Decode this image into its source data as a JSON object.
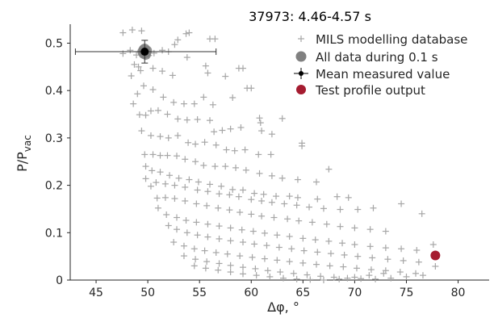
{
  "chart_data": {
    "type": "scatter",
    "title": "37973: 4.46-4.57 s",
    "xlabel": "Δφ, °",
    "ylabel": "P/P_vac",
    "ylabel_main": "P/P",
    "ylabel_sub": "vac",
    "xlim": [
      42.5,
      83
    ],
    "ylim": [
      0,
      0.54
    ],
    "x_ticks": [
      45,
      50,
      55,
      60,
      65,
      70,
      75,
      80
    ],
    "y_ticks": [
      0,
      0.1,
      0.2,
      0.3,
      0.4,
      0.5
    ],
    "x_tick_labels": [
      "45",
      "50",
      "55",
      "60",
      "65",
      "70",
      "75",
      "80"
    ],
    "y_tick_labels": [
      "0",
      "0.1",
      "0.2",
      "0.3",
      "0.4",
      "0.5"
    ],
    "grid": false,
    "legend_position": "top-right",
    "legend": [
      "MILS modelling database",
      "All data during 0.1 s",
      "Mean measured value",
      "Test profile output"
    ],
    "series": [
      {
        "name": "MILS modelling database",
        "marker": "plus",
        "color": "#a6a6a6",
        "points": [
          [
            47.6,
            0.522
          ],
          [
            48.5,
            0.528
          ],
          [
            49.4,
            0.526
          ],
          [
            47.6,
            0.478
          ],
          [
            48.3,
            0.485
          ],
          [
            48.9,
            0.475
          ],
          [
            50.1,
            0.474
          ],
          [
            50.6,
            0.479
          ],
          [
            51.4,
            0.485
          ],
          [
            52.0,
            0.482
          ],
          [
            52.6,
            0.497
          ],
          [
            52.9,
            0.507
          ],
          [
            53.7,
            0.52
          ],
          [
            54.0,
            0.522
          ],
          [
            56.0,
            0.509
          ],
          [
            56.5,
            0.509
          ],
          [
            48.4,
            0.431
          ],
          [
            48.7,
            0.455
          ],
          [
            49.1,
            0.45
          ],
          [
            49.3,
            0.442
          ],
          [
            50.5,
            0.447
          ],
          [
            51.4,
            0.441
          ],
          [
            52.4,
            0.432
          ],
          [
            53.8,
            0.47
          ],
          [
            55.6,
            0.452
          ],
          [
            55.8,
            0.437
          ],
          [
            57.5,
            0.43
          ],
          [
            58.8,
            0.447
          ],
          [
            59.2,
            0.447
          ],
          [
            59.6,
            0.405
          ],
          [
            60.0,
            0.405
          ],
          [
            48.6,
            0.372
          ],
          [
            49.0,
            0.393
          ],
          [
            49.6,
            0.41
          ],
          [
            50.5,
            0.402
          ],
          [
            51.5,
            0.386
          ],
          [
            52.5,
            0.375
          ],
          [
            53.5,
            0.372
          ],
          [
            54.5,
            0.372
          ],
          [
            55.4,
            0.386
          ],
          [
            56.3,
            0.37
          ],
          [
            58.2,
            0.385
          ],
          [
            60.8,
            0.342
          ],
          [
            60.9,
            0.332
          ],
          [
            63.0,
            0.341
          ],
          [
            49.2,
            0.349
          ],
          [
            49.8,
            0.348
          ],
          [
            50.3,
            0.357
          ],
          [
            51.0,
            0.358
          ],
          [
            51.9,
            0.35
          ],
          [
            52.9,
            0.34
          ],
          [
            53.8,
            0.338
          ],
          [
            54.8,
            0.339
          ],
          [
            56.0,
            0.337
          ],
          [
            56.4,
            0.313
          ],
          [
            57.2,
            0.316
          ],
          [
            58.0,
            0.319
          ],
          [
            59.0,
            0.322
          ],
          [
            61.0,
            0.315
          ],
          [
            62.0,
            0.308
          ],
          [
            49.4,
            0.315
          ],
          [
            50.3,
            0.305
          ],
          [
            51.2,
            0.303
          ],
          [
            52.0,
            0.3
          ],
          [
            52.9,
            0.305
          ],
          [
            53.9,
            0.29
          ],
          [
            54.6,
            0.287
          ],
          [
            55.5,
            0.291
          ],
          [
            56.6,
            0.285
          ],
          [
            57.6,
            0.275
          ],
          [
            58.4,
            0.273
          ],
          [
            59.4,
            0.275
          ],
          [
            60.7,
            0.265
          ],
          [
            61.9,
            0.265
          ],
          [
            64.9,
            0.283
          ],
          [
            64.9,
            0.289
          ],
          [
            49.7,
            0.265
          ],
          [
            50.5,
            0.265
          ],
          [
            51.2,
            0.263
          ],
          [
            51.9,
            0.263
          ],
          [
            52.8,
            0.262
          ],
          [
            53.6,
            0.255
          ],
          [
            54.6,
            0.25
          ],
          [
            55.4,
            0.242
          ],
          [
            56.5,
            0.24
          ],
          [
            57.5,
            0.24
          ],
          [
            58.5,
            0.237
          ],
          [
            59.5,
            0.232
          ],
          [
            60.8,
            0.225
          ],
          [
            62.0,
            0.22
          ],
          [
            63.0,
            0.215
          ],
          [
            64.5,
            0.212
          ],
          [
            66.3,
            0.207
          ],
          [
            67.5,
            0.234
          ],
          [
            49.8,
            0.24
          ],
          [
            50.4,
            0.231
          ],
          [
            51.2,
            0.228
          ],
          [
            52.1,
            0.221
          ],
          [
            53.0,
            0.215
          ],
          [
            54.0,
            0.212
          ],
          [
            54.9,
            0.207
          ],
          [
            56.0,
            0.202
          ],
          [
            57.1,
            0.198
          ],
          [
            58.2,
            0.191
          ],
          [
            59.2,
            0.19
          ],
          [
            60.3,
            0.183
          ],
          [
            61.2,
            0.181
          ],
          [
            62.4,
            0.177
          ],
          [
            63.7,
            0.177
          ],
          [
            64.5,
            0.174
          ],
          [
            66.4,
            0.171
          ],
          [
            68.3,
            0.176
          ],
          [
            69.4,
            0.174
          ],
          [
            49.8,
            0.214
          ],
          [
            50.8,
            0.206
          ],
          [
            51.7,
            0.203
          ],
          [
            52.6,
            0.2
          ],
          [
            53.6,
            0.196
          ],
          [
            54.8,
            0.19
          ],
          [
            55.8,
            0.187
          ],
          [
            56.9,
            0.182
          ],
          [
            57.9,
            0.18
          ],
          [
            58.8,
            0.176
          ],
          [
            60.0,
            0.17
          ],
          [
            61.0,
            0.167
          ],
          [
            62.0,
            0.164
          ],
          [
            63.2,
            0.161
          ],
          [
            64.4,
            0.158
          ],
          [
            65.6,
            0.154
          ],
          [
            67.0,
            0.151
          ],
          [
            68.6,
            0.149
          ],
          [
            70.3,
            0.149
          ],
          [
            71.8,
            0.152
          ],
          [
            74.5,
            0.161
          ],
          [
            76.5,
            0.14
          ],
          [
            50.3,
            0.198
          ],
          [
            50.9,
            0.173
          ],
          [
            51.7,
            0.174
          ],
          [
            52.6,
            0.172
          ],
          [
            53.6,
            0.167
          ],
          [
            54.7,
            0.161
          ],
          [
            55.7,
            0.157
          ],
          [
            56.8,
            0.152
          ],
          [
            57.9,
            0.148
          ],
          [
            58.9,
            0.143
          ],
          [
            60.0,
            0.139
          ],
          [
            61.0,
            0.135
          ],
          [
            62.2,
            0.132
          ],
          [
            63.5,
            0.129
          ],
          [
            64.6,
            0.125
          ],
          [
            65.9,
            0.122
          ],
          [
            67.3,
            0.118
          ],
          [
            68.6,
            0.113
          ],
          [
            70.0,
            0.11
          ],
          [
            71.5,
            0.107
          ],
          [
            73.0,
            0.103
          ],
          [
            51.0,
            0.152
          ],
          [
            51.8,
            0.138
          ],
          [
            52.8,
            0.132
          ],
          [
            53.7,
            0.126
          ],
          [
            54.7,
            0.122
          ],
          [
            55.8,
            0.118
          ],
          [
            56.9,
            0.114
          ],
          [
            58.0,
            0.11
          ],
          [
            59.1,
            0.106
          ],
          [
            60.2,
            0.103
          ],
          [
            61.3,
            0.099
          ],
          [
            62.5,
            0.095
          ],
          [
            63.7,
            0.092
          ],
          [
            65.0,
            0.088
          ],
          [
            66.2,
            0.085
          ],
          [
            67.5,
            0.082
          ],
          [
            68.8,
            0.078
          ],
          [
            70.0,
            0.075
          ],
          [
            71.5,
            0.071
          ],
          [
            73.0,
            0.068
          ],
          [
            74.5,
            0.066
          ],
          [
            76.0,
            0.063
          ],
          [
            52.0,
            0.115
          ],
          [
            52.8,
            0.107
          ],
          [
            53.8,
            0.1
          ],
          [
            54.8,
            0.095
          ],
          [
            55.8,
            0.091
          ],
          [
            56.9,
            0.087
          ],
          [
            58.0,
            0.083
          ],
          [
            59.2,
            0.08
          ],
          [
            60.3,
            0.076
          ],
          [
            61.5,
            0.073
          ],
          [
            62.7,
            0.069
          ],
          [
            63.9,
            0.066
          ],
          [
            65.1,
            0.062
          ],
          [
            66.4,
            0.059
          ],
          [
            67.7,
            0.056
          ],
          [
            69.0,
            0.053
          ],
          [
            70.3,
            0.05
          ],
          [
            71.7,
            0.047
          ],
          [
            73.2,
            0.044
          ],
          [
            74.7,
            0.041
          ],
          [
            76.2,
            0.038
          ],
          [
            77.6,
            0.075
          ],
          [
            52.5,
            0.08
          ],
          [
            53.5,
            0.072
          ],
          [
            54.5,
            0.066
          ],
          [
            55.5,
            0.062
          ],
          [
            56.6,
            0.058
          ],
          [
            57.7,
            0.055
          ],
          [
            58.9,
            0.051
          ],
          [
            60.1,
            0.048
          ],
          [
            61.3,
            0.045
          ],
          [
            62.5,
            0.042
          ],
          [
            63.7,
            0.039
          ],
          [
            65.0,
            0.036
          ],
          [
            66.3,
            0.033
          ],
          [
            67.6,
            0.03
          ],
          [
            68.9,
            0.028
          ],
          [
            70.2,
            0.025
          ],
          [
            71.6,
            0.022
          ],
          [
            73.0,
            0.02
          ],
          [
            74.4,
            0.017
          ],
          [
            75.9,
            0.014
          ],
          [
            77.8,
            0.029
          ],
          [
            53.5,
            0.051
          ],
          [
            54.6,
            0.044
          ],
          [
            55.7,
            0.039
          ],
          [
            56.9,
            0.035
          ],
          [
            58.0,
            0.031
          ],
          [
            59.2,
            0.027
          ],
          [
            60.4,
            0.024
          ],
          [
            61.6,
            0.02
          ],
          [
            62.8,
            0.017
          ],
          [
            64.1,
            0.014
          ],
          [
            65.4,
            0.011
          ],
          [
            66.7,
            0.008
          ],
          [
            68.0,
            0.006
          ],
          [
            69.3,
            0.004
          ],
          [
            70.6,
            0.003
          ],
          [
            72.0,
            0.002
          ],
          [
            73.5,
            0.004
          ],
          [
            75.0,
            0.007
          ],
          [
            76.6,
            0.01
          ],
          [
            54.5,
            0.03
          ],
          [
            55.6,
            0.025
          ],
          [
            56.8,
            0.021
          ],
          [
            58.0,
            0.017
          ],
          [
            59.2,
            0.013
          ],
          [
            60.5,
            0.01
          ],
          [
            61.8,
            0.007
          ],
          [
            63.1,
            0.004
          ],
          [
            64.4,
            0.002
          ],
          [
            65.7,
            0.001
          ],
          [
            67.0,
            0.0
          ],
          [
            68.5,
            0.002
          ],
          [
            70.0,
            0.006
          ],
          [
            71.4,
            0.01
          ],
          [
            72.8,
            0.014
          ]
        ]
      },
      {
        "name": "All data during 0.1 s",
        "marker": "circle",
        "color": "#808080",
        "points": [
          [
            49.5,
            0.482
          ],
          [
            49.6,
            0.478
          ],
          [
            49.7,
            0.488
          ],
          [
            49.8,
            0.48
          ],
          [
            49.9,
            0.484
          ],
          [
            49.6,
            0.486
          ],
          [
            49.8,
            0.476
          ]
        ]
      },
      {
        "name": "Mean measured value",
        "marker": "circle",
        "color": "#000000",
        "points": [
          [
            49.7,
            0.482
          ]
        ],
        "x_error": [
          43.0,
          56.6
        ],
        "y_error": [
          0.458,
          0.506
        ]
      },
      {
        "name": "Test profile output",
        "marker": "circle",
        "color": "#a51c30",
        "points": [
          [
            77.8,
            0.052
          ]
        ]
      }
    ]
  }
}
